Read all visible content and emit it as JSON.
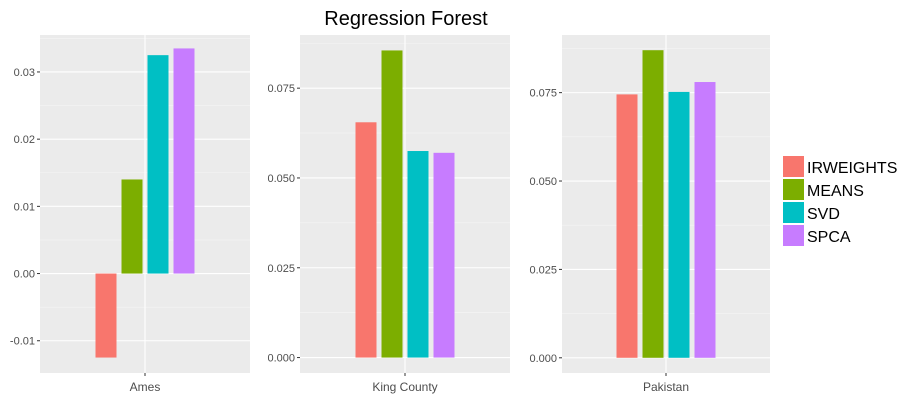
{
  "chart_data": {
    "type": "bar",
    "title": "Regression Forest",
    "legend_position": "right",
    "series_names": [
      "IRWEIGHTS",
      "MEANS",
      "SVD",
      "SPCA"
    ],
    "colors": {
      "IRWEIGHTS": "#F8766D",
      "MEANS": "#7CAE00",
      "SVD": "#00BFC4",
      "SPCA": "#C77CFF"
    },
    "panels": [
      {
        "category": "Ames",
        "values": {
          "IRWEIGHTS": -0.0125,
          "MEANS": 0.014,
          "SVD": 0.0325,
          "SPCA": 0.0335
        },
        "ylim": [
          -0.0148,
          0.0355
        ],
        "yticks": [
          -0.01,
          0,
          0.01,
          0.02,
          0.03
        ],
        "ytick_labels": [
          "-0.01",
          "0.00",
          "0.01",
          "0.02",
          "0.03"
        ]
      },
      {
        "category": "King County",
        "values": {
          "IRWEIGHTS": 0.0655,
          "MEANS": 0.0855,
          "SVD": 0.0575,
          "SPCA": 0.057
        },
        "ylim": [
          -0.0043,
          0.0898
        ],
        "yticks": [
          0,
          0.025,
          0.05,
          0.075
        ],
        "ytick_labels": [
          "0.000",
          "0.025",
          "0.050",
          "0.075"
        ]
      },
      {
        "category": "Pakistan",
        "values": {
          "IRWEIGHTS": 0.0745,
          "MEANS": 0.087,
          "SVD": 0.0752,
          "SPCA": 0.078
        },
        "ylim": [
          -0.0043,
          0.0913
        ],
        "yticks": [
          0,
          0.025,
          0.05,
          0.075
        ],
        "ytick_labels": [
          "0.000",
          "0.025",
          "0.050",
          "0.075"
        ]
      }
    ]
  }
}
